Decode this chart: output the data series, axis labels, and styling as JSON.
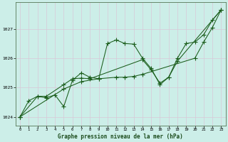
{
  "title": "Graphe pression niveau de la mer (hPa)",
  "background_color": "#cceee8",
  "grid_color": "#d8c8d8",
  "line_color": "#1a5c1a",
  "xlim": [
    -0.5,
    23.5
  ],
  "ylim": [
    1023.7,
    1027.9
  ],
  "xticks": [
    0,
    1,
    2,
    3,
    4,
    5,
    6,
    7,
    8,
    9,
    10,
    11,
    12,
    13,
    14,
    15,
    16,
    17,
    18,
    19,
    20,
    21,
    22,
    23
  ],
  "yticks": [
    1024,
    1025,
    1026,
    1027
  ],
  "series1_x": [
    0,
    1,
    2,
    3,
    4,
    5,
    6,
    7,
    8,
    9,
    10,
    11,
    12,
    13,
    14,
    15,
    16,
    17,
    18,
    19,
    20,
    21,
    22,
    23
  ],
  "series1_y": [
    1024.0,
    1024.55,
    1024.7,
    1024.65,
    1024.75,
    1024.35,
    1025.25,
    1025.5,
    1025.35,
    1025.3,
    1026.5,
    1026.62,
    1026.5,
    1026.48,
    1026.0,
    1025.65,
    1025.1,
    1025.35,
    1026.0,
    1026.5,
    1026.55,
    1026.8,
    1027.3,
    1027.65
  ],
  "series2_x": [
    0,
    2,
    3,
    5,
    6,
    7,
    8,
    14,
    15,
    16,
    17,
    18,
    23
  ],
  "series2_y": [
    1024.0,
    1024.7,
    1024.7,
    1025.1,
    1025.3,
    1025.32,
    1025.3,
    1025.95,
    1025.6,
    1025.15,
    1025.35,
    1025.9,
    1027.65
  ],
  "series3_x": [
    0,
    5,
    7,
    9,
    11,
    12,
    13,
    14,
    20,
    21,
    22,
    23
  ],
  "series3_y": [
    1024.0,
    1024.95,
    1025.2,
    1025.3,
    1025.35,
    1025.35,
    1025.38,
    1025.45,
    1026.0,
    1026.55,
    1027.05,
    1027.65
  ]
}
